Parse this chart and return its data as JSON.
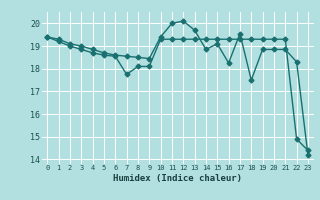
{
  "line1_x": [
    0,
    1,
    2,
    3,
    4,
    5,
    6,
    7,
    8,
    9,
    10,
    11,
    12,
    13,
    14,
    15,
    16,
    17,
    18,
    19,
    20,
    21,
    22,
    23
  ],
  "line1_y": [
    19.4,
    19.3,
    19.1,
    19.0,
    18.85,
    18.7,
    18.6,
    18.55,
    18.5,
    18.45,
    19.4,
    20.0,
    20.1,
    19.7,
    18.85,
    19.1,
    18.25,
    19.55,
    17.5,
    18.85,
    18.85,
    18.85,
    18.3,
    14.2
  ],
  "line2_x": [
    0,
    1,
    2,
    3,
    4,
    5,
    6,
    7,
    8,
    9,
    10,
    11,
    12,
    13,
    14,
    15,
    16,
    17,
    18,
    19,
    20,
    21,
    22,
    23
  ],
  "line2_y": [
    19.4,
    19.2,
    19.0,
    18.85,
    18.7,
    18.6,
    18.55,
    17.75,
    18.1,
    18.1,
    19.3,
    19.3,
    19.3,
    19.3,
    19.3,
    19.3,
    19.3,
    19.3,
    19.3,
    19.3,
    19.3,
    19.3,
    14.9,
    14.4
  ],
  "bg_color": "#b2e0e0",
  "grid_color": "#ffffff",
  "line_color": "#1a7070",
  "xlim": [
    -0.5,
    23.5
  ],
  "ylim": [
    13.8,
    20.5
  ],
  "yticks": [
    14,
    15,
    16,
    17,
    18,
    19,
    20
  ],
  "xticks": [
    0,
    1,
    2,
    3,
    4,
    5,
    6,
    7,
    8,
    9,
    10,
    11,
    12,
    13,
    14,
    15,
    16,
    17,
    18,
    19,
    20,
    21,
    22,
    23
  ],
  "xlabel": "Humidex (Indice chaleur)",
  "marker": "D",
  "markersize": 2.5,
  "linewidth": 1.0,
  "title": ""
}
